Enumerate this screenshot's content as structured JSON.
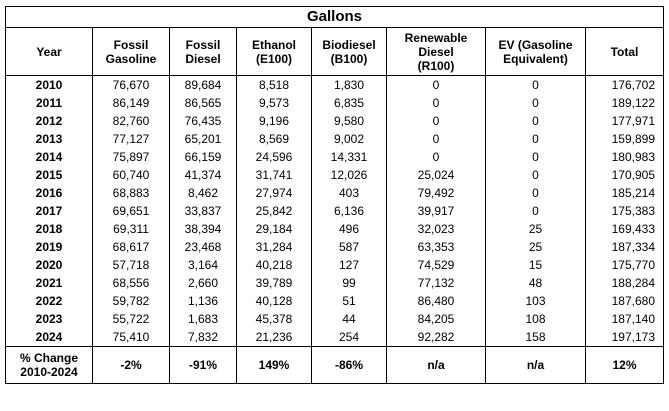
{
  "table": {
    "title": "Gallons",
    "headers": [
      [
        "Year"
      ],
      [
        "Fossil",
        "Gasoline"
      ],
      [
        "Fossil",
        "Diesel"
      ],
      [
        "Ethanol",
        "(E100)"
      ],
      [
        "Biodiesel",
        "(B100)"
      ],
      [
        "Renewable",
        "Diesel",
        "(R100)"
      ],
      [
        "EV (Gasoline",
        "Equivalent)"
      ],
      [
        "Total"
      ]
    ],
    "rows": [
      [
        "2010",
        "76,670",
        "89,684",
        "8,518",
        "1,830",
        "0",
        "0",
        "176,702"
      ],
      [
        "2011",
        "86,149",
        "86,565",
        "9,573",
        "6,835",
        "0",
        "0",
        "189,122"
      ],
      [
        "2012",
        "82,760",
        "76,435",
        "9,196",
        "9,580",
        "0",
        "0",
        "177,971"
      ],
      [
        "2013",
        "77,127",
        "65,201",
        "8,569",
        "9,002",
        "0",
        "0",
        "159,899"
      ],
      [
        "2014",
        "75,897",
        "66,159",
        "24,596",
        "14,331",
        "0",
        "0",
        "180,983"
      ],
      [
        "2015",
        "60,740",
        "41,374",
        "31,741",
        "12,026",
        "25,024",
        "0",
        "170,905"
      ],
      [
        "2016",
        "68,883",
        "8,462",
        "27,974",
        "403",
        "79,492",
        "0",
        "185,214"
      ],
      [
        "2017",
        "69,651",
        "33,837",
        "25,842",
        "6,136",
        "39,917",
        "0",
        "175,383"
      ],
      [
        "2018",
        "69,311",
        "38,394",
        "29,184",
        "496",
        "32,023",
        "25",
        "169,433"
      ],
      [
        "2019",
        "68,617",
        "23,468",
        "31,284",
        "587",
        "63,353",
        "25",
        "187,334"
      ],
      [
        "2020",
        "57,718",
        "3,164",
        "40,218",
        "127",
        "74,529",
        "15",
        "175,770"
      ],
      [
        "2021",
        "68,556",
        "2,660",
        "39,789",
        "99",
        "77,132",
        "48",
        "188,284"
      ],
      [
        "2022",
        "59,782",
        "1,136",
        "40,128",
        "51",
        "86,480",
        "103",
        "187,680"
      ],
      [
        "2023",
        "55,722",
        "1,683",
        "45,378",
        "44",
        "84,205",
        "108",
        "187,140"
      ],
      [
        "2024",
        "75,410",
        "7,832",
        "21,236",
        "254",
        "92,282",
        "158",
        "197,173"
      ]
    ],
    "footer": {
      "label": [
        "% Change",
        "2010-2024"
      ],
      "values": [
        "-2%",
        "-91%",
        "149%",
        "-86%",
        "n/a",
        "n/a",
        "12%"
      ]
    }
  }
}
